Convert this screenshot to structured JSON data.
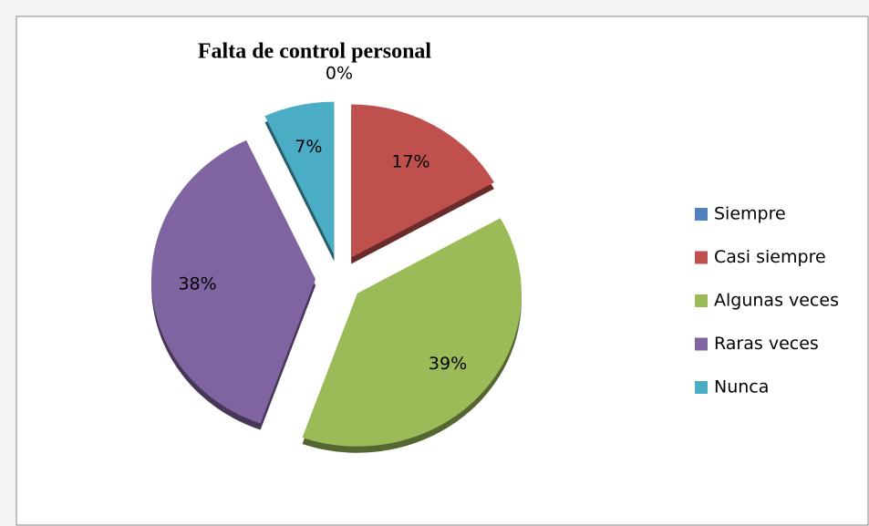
{
  "chart_data": {
    "type": "pie",
    "title": "Falta de control personal",
    "categories": [
      "Siempre",
      "Casi siempre",
      "Algunas veces",
      "Raras veces",
      "Nunca"
    ],
    "values": [
      0,
      17,
      39,
      38,
      7
    ],
    "value_labels": [
      "0%",
      "17%",
      "39%",
      "38%",
      "7%"
    ],
    "colors": [
      "#4f81bd",
      "#c0504d",
      "#9bbb59",
      "#8064a2",
      "#4bacc6"
    ],
    "legend": "right"
  }
}
